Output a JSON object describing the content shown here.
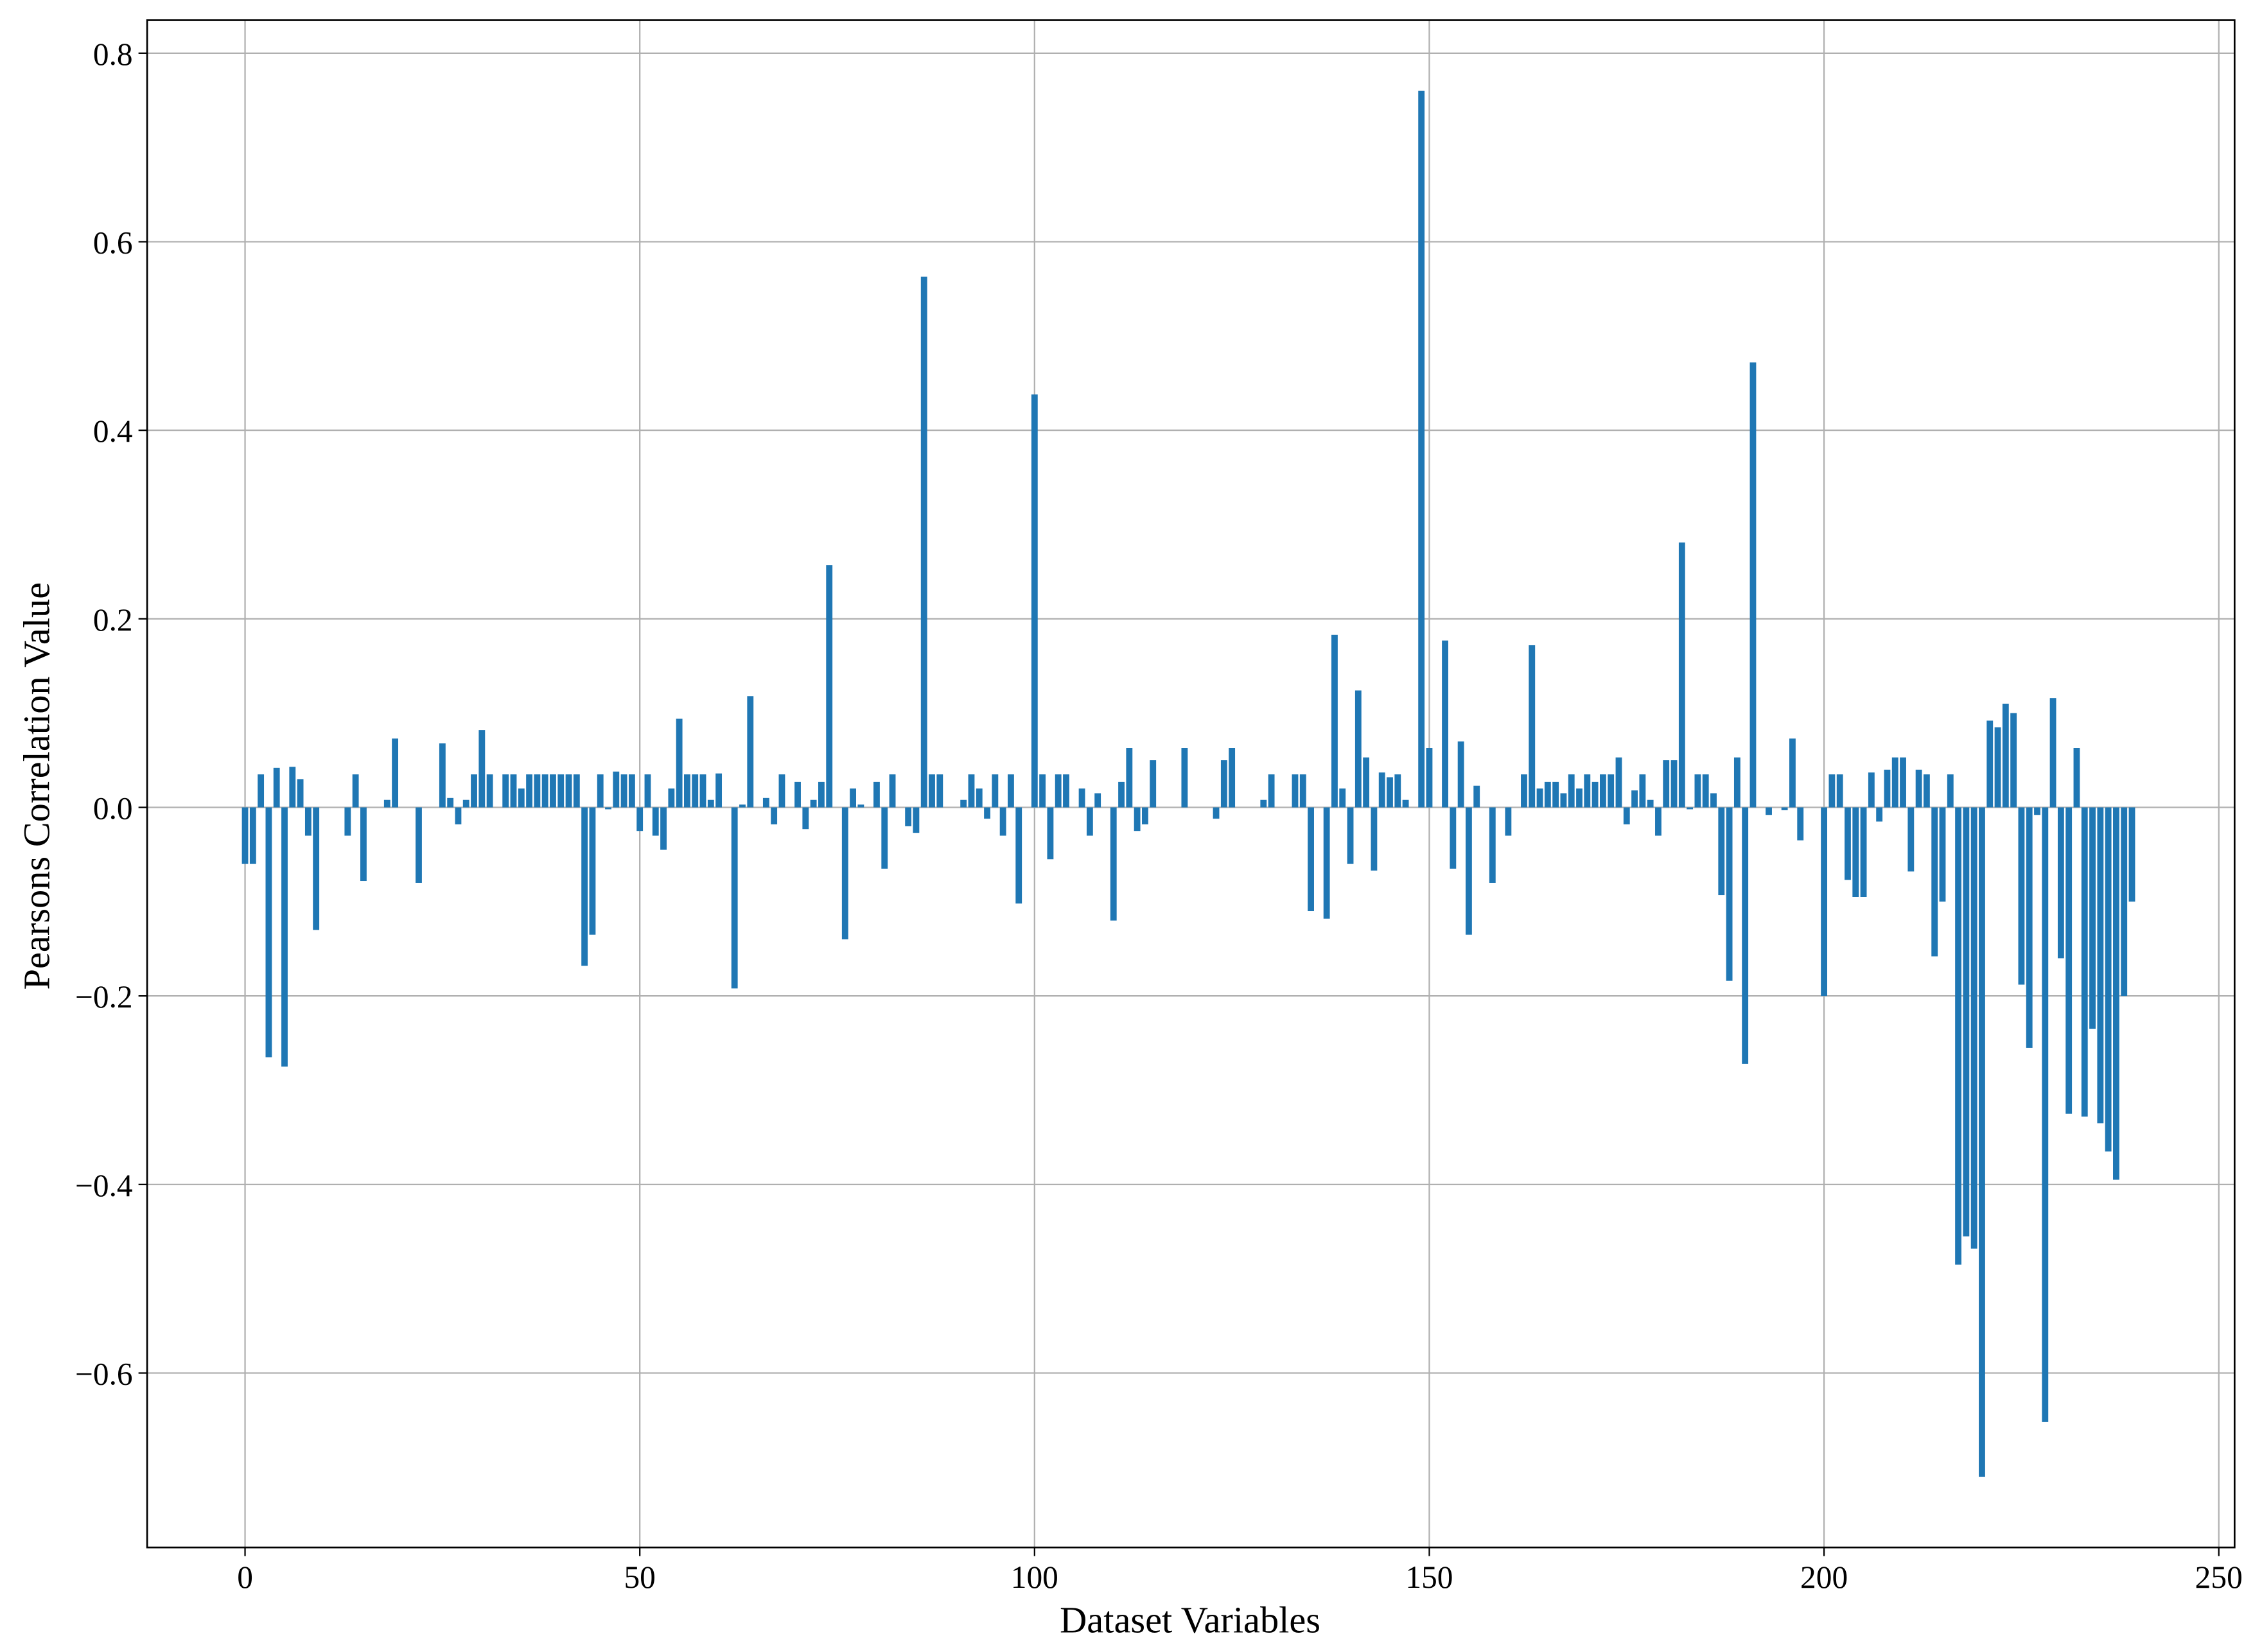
{
  "chart_data": {
    "type": "bar",
    "xlabel": "Dataset Variables",
    "ylabel": "Pearsons Correlation Value",
    "color": "#1f77b4",
    "grid": true,
    "bar_width": 0.8,
    "xlim": [
      -12.4,
      252
    ],
    "ylim": [
      -0.785,
      0.835
    ],
    "xticks": [
      0,
      50,
      100,
      150,
      200,
      250
    ],
    "yticks": [
      {
        "value": -0.6,
        "label": "−0.6"
      },
      {
        "value": -0.4,
        "label": "−0.4"
      },
      {
        "value": -0.2,
        "label": "−0.2"
      },
      {
        "value": 0,
        "label": "0.0"
      },
      0.2,
      0.4,
      0.6,
      0.8
    ],
    "x": [
      0,
      1,
      2,
      3,
      4,
      5,
      6,
      7,
      8,
      9,
      10,
      11,
      12,
      13,
      14,
      15,
      16,
      17,
      18,
      19,
      20,
      21,
      22,
      23,
      24,
      25,
      26,
      27,
      28,
      29,
      30,
      31,
      32,
      33,
      34,
      35,
      36,
      37,
      38,
      39,
      40,
      41,
      42,
      43,
      44,
      45,
      46,
      47,
      48,
      49,
      50,
      51,
      52,
      53,
      54,
      55,
      56,
      57,
      58,
      59,
      60,
      61,
      62,
      63,
      64,
      65,
      66,
      67,
      68,
      69,
      70,
      71,
      72,
      73,
      74,
      75,
      76,
      77,
      78,
      79,
      80,
      81,
      82,
      83,
      84,
      85,
      86,
      87,
      88,
      89,
      90,
      91,
      92,
      93,
      94,
      95,
      96,
      97,
      98,
      99,
      100,
      101,
      102,
      103,
      104,
      105,
      106,
      107,
      108,
      109,
      110,
      111,
      112,
      113,
      114,
      115,
      116,
      117,
      118,
      119,
      120,
      121,
      122,
      123,
      124,
      125,
      126,
      127,
      128,
      129,
      130,
      131,
      132,
      133,
      134,
      135,
      136,
      137,
      138,
      139,
      140,
      141,
      142,
      143,
      144,
      145,
      146,
      147,
      148,
      149,
      150,
      151,
      152,
      153,
      154,
      155,
      156,
      157,
      158,
      159,
      160,
      161,
      162,
      163,
      164,
      165,
      166,
      167,
      168,
      169,
      170,
      171,
      172,
      173,
      174,
      175,
      176,
      177,
      178,
      179,
      180,
      181,
      182,
      183,
      184,
      185,
      186,
      187,
      188,
      189,
      190,
      191,
      192,
      193,
      194,
      195,
      196,
      197,
      198,
      199,
      200,
      201,
      202,
      203,
      204,
      205,
      206,
      207,
      208,
      209,
      210,
      211,
      212,
      213,
      214,
      215,
      216,
      217,
      218,
      219,
      220,
      221,
      222,
      223,
      224,
      225,
      226,
      227,
      228,
      229,
      230,
      231,
      232,
      233,
      234,
      235,
      236,
      237,
      238,
      239
    ],
    "values": [
      -0.06,
      -0.06,
      0.035,
      -0.265,
      0.042,
      -0.275,
      0.043,
      0.03,
      -0.03,
      -0.13,
      0,
      0,
      0,
      -0.03,
      0.035,
      -0.078,
      0,
      0,
      0.008,
      0.073,
      0,
      0,
      -0.08,
      0,
      0,
      0.068,
      0.01,
      -0.018,
      0.008,
      0.035,
      0.082,
      0.035,
      0,
      0.035,
      0.035,
      0.02,
      0.035,
      0.035,
      0.035,
      0.035,
      0.035,
      0.035,
      0.035,
      -0.168,
      -0.135,
      0.035,
      -0.002,
      0.038,
      0.035,
      0.035,
      -0.025,
      0.035,
      -0.03,
      -0.045,
      0.02,
      0.094,
      0.035,
      0.035,
      0.035,
      0.008,
      0.036,
      0,
      -0.192,
      0.003,
      0.118,
      0,
      0.01,
      -0.018,
      0.035,
      0,
      0.027,
      -0.023,
      0.008,
      0.027,
      0.257,
      0,
      -0.14,
      0.02,
      0.003,
      0,
      0.027,
      -0.065,
      0.035,
      0,
      -0.02,
      -0.027,
      0.563,
      0.035,
      0.035,
      0,
      0,
      0.008,
      0.035,
      0.02,
      -0.012,
      0.035,
      -0.03,
      0.035,
      -0.102,
      0,
      0.438,
      0.035,
      -0.055,
      0.035,
      0.035,
      0,
      0.02,
      -0.03,
      0.015,
      0,
      -0.12,
      0.027,
      0.063,
      -0.025,
      -0.018,
      0.05,
      0,
      0,
      0,
      0.063,
      0,
      0,
      0,
      -0.012,
      0.05,
      0.063,
      0,
      0,
      0,
      0.008,
      0.035,
      0,
      0,
      0.035,
      0.035,
      -0.11,
      0,
      -0.118,
      0.183,
      0.02,
      -0.06,
      0.124,
      0.053,
      -0.067,
      0.037,
      0.032,
      0.035,
      0.008,
      0,
      0.76,
      0.063,
      0,
      0.177,
      -0.065,
      0.07,
      -0.135,
      0.023,
      0,
      -0.08,
      0,
      -0.03,
      0,
      0.035,
      0.172,
      0.02,
      0.027,
      0.027,
      0.015,
      0.035,
      0.02,
      0.035,
      0.027,
      0.035,
      0.035,
      0.053,
      -0.018,
      0.018,
      0.035,
      0.008,
      -0.03,
      0.05,
      0.05,
      0.281,
      -0.002,
      0.035,
      0.035,
      0.015,
      -0.093,
      -0.184,
      0.053,
      -0.272,
      0.472,
      0,
      -0.008,
      0,
      -0.003,
      0.073,
      -0.035,
      0,
      0,
      -0.2,
      0.035,
      0.035,
      -0.077,
      -0.095,
      -0.095,
      0.037,
      -0.015,
      0.04,
      0.053,
      0.053,
      -0.068,
      0.04,
      0.035,
      -0.158,
      -0.1,
      0.035,
      -0.485,
      -0.455,
      -0.468,
      -0.71,
      0.092,
      0.085,
      0.11,
      0.1,
      -0.188,
      -0.255,
      -0.008,
      -0.652,
      0.116,
      -0.16,
      -0.325,
      0.063,
      -0.328,
      -0.235,
      -0.335,
      -0.365,
      -0.395,
      -0.2,
      -0.1
    ]
  }
}
